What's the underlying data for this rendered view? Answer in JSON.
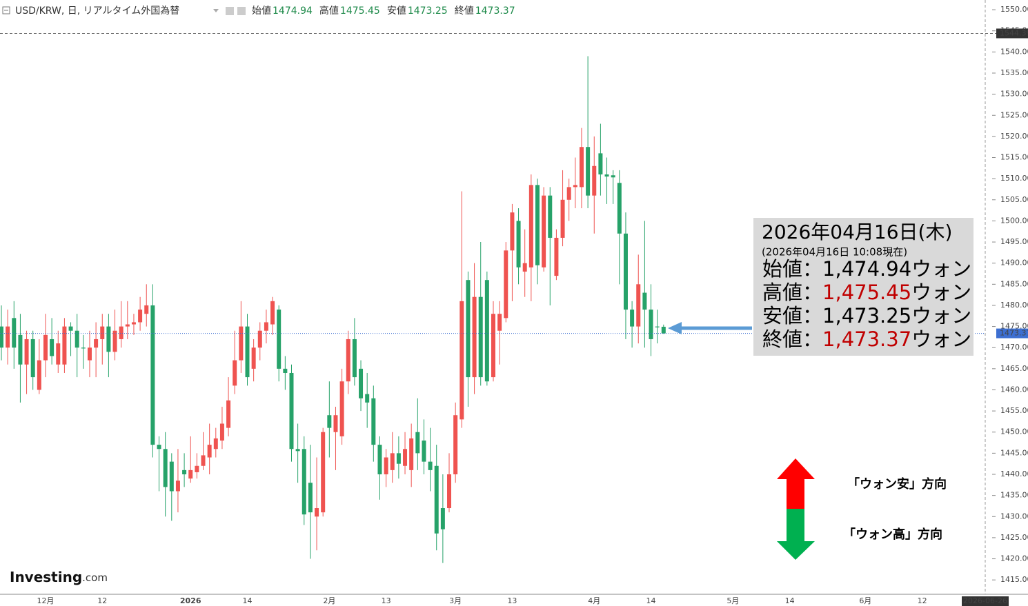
{
  "chart_data": {
    "type": "candlestick",
    "title": "USD/KRW, 日, リアルタイム外国為替",
    "ohlc_labels": {
      "open": "始値",
      "high": "高値",
      "low": "安値",
      "close": "終値"
    },
    "up_color": "#ef5350",
    "down_color": "#26a269",
    "price_line_color": "#3d6fd1",
    "categories": [
      null,
      null,
      null,
      null,
      null,
      null,
      null,
      "12月",
      null,
      null,
      null,
      null,
      null,
      null,
      null,
      null,
      "12",
      null,
      null,
      null,
      null,
      null,
      null,
      null,
      null,
      null,
      null,
      null,
      null,
      null,
      "2026",
      null,
      null,
      null,
      null,
      null,
      null,
      null,
      null,
      "14",
      null,
      null,
      null,
      null,
      null,
      null,
      null,
      null,
      null,
      null,
      null,
      null,
      "2月",
      null,
      null,
      null,
      null,
      null,
      null,
      null,
      null,
      "13",
      null,
      null,
      null,
      null,
      null,
      null,
      null,
      null,
      null,
      null,
      "3月",
      null,
      null,
      null,
      null,
      null,
      null,
      null,
      null,
      "13",
      null,
      null,
      null,
      null,
      null,
      null,
      null,
      null,
      null,
      null,
      null,
      null,
      "4月",
      null,
      null,
      null,
      null,
      null,
      null,
      null,
      null,
      "14",
      null,
      null,
      null,
      null,
      null,
      null,
      null,
      null,
      null,
      null,
      null,
      null,
      "5月",
      null,
      null,
      null,
      null,
      null,
      null,
      null,
      null,
      "14",
      null,
      null,
      null,
      null,
      null,
      null,
      null,
      null,
      null,
      null,
      null,
      "6月",
      null,
      null,
      null,
      null,
      null,
      null,
      null,
      null,
      "12",
      null,
      null,
      null,
      null,
      null,
      null,
      null,
      null,
      null,
      "2026-06-26"
    ],
    "open": [
      1475,
      1470,
      1477,
      1473,
      1466,
      1472,
      1460,
      1467,
      1472,
      1466,
      1466,
      1475,
      1474,
      1470,
      1467,
      1470,
      1472,
      1475,
      1469,
      1472,
      1475,
      1475.5,
      1476,
      1478,
      1480,
      1447,
      1446,
      1443,
      1436,
      1441,
      1439,
      1440.5,
      1442,
      1444,
      1446,
      1448,
      1451,
      1461,
      1467,
      1475,
      1465,
      1470,
      1474,
      1475.5,
      1479,
      1465,
      1464,
      1446,
      1446,
      1438,
      1430,
      1431,
      1454,
      1450,
      1449,
      1462,
      1472,
      1465,
      1459,
      1458,
      1447,
      1440,
      1441,
      1445,
      1442,
      1441,
      1450,
      1448,
      1443,
      1442,
      1432,
      1432,
      1440,
      1453,
      1486,
      1463,
      1482,
      1486,
      1463,
      1474,
      1477,
      1493,
      1500,
      1488,
      1489,
      1508.5,
      1489,
      1506,
      1487,
      1496,
      1505,
      1508,
      1508,
      1517.5,
      1506,
      1516,
      1511,
      1510.8,
      1509,
      1497,
      1479,
      1475,
      1483,
      1479,
      1475,
      1474.94,
      null,
      null,
      null,
      null,
      null,
      null,
      null,
      null,
      null,
      null,
      null,
      null,
      null,
      null,
      null,
      null,
      null,
      null,
      null,
      null,
      null,
      null,
      null,
      null,
      null,
      null,
      null,
      null,
      null,
      null,
      null,
      null,
      null,
      null,
      null,
      null,
      null,
      null,
      null,
      null,
      null,
      null,
      null,
      null,
      null,
      null,
      null,
      null,
      null,
      null,
      null
    ],
    "high": [
      1480,
      1479,
      1481,
      1478,
      1474,
      1474,
      1472,
      1478,
      1477,
      1474,
      1477,
      1476,
      1478,
      1473,
      1474,
      1476,
      1478,
      1478,
      1479,
      1481,
      1481,
      1478,
      1482,
      1485,
      1485,
      1449,
      1450,
      1445,
      1446,
      1445,
      1449,
      1445,
      1450,
      1452,
      1451,
      1456,
      1463,
      1474,
      1481,
      1478,
      1472,
      1476,
      1479,
      1482,
      1480,
      1468,
      1466,
      1452,
      1449,
      1447,
      1444,
      1451,
      1462,
      1456,
      1465,
      1474,
      1477,
      1467,
      1464,
      1461,
      1449,
      1446,
      1450,
      1449,
      1450,
      1452,
      1458,
      1453,
      1451,
      1447,
      1440,
      1445,
      1457,
      1507,
      1488,
      1490,
      1495,
      1488,
      1481,
      1481,
      1495,
      1504,
      1503,
      1498,
      1511,
      1510,
      1508,
      1508,
      1498,
      1512,
      1510,
      1515,
      1522,
      1539,
      1520,
      1523,
      1515,
      1512,
      1512,
      1502,
      1481,
      1492,
      1500,
      1485,
      1479,
      1475.45,
      null,
      null,
      null,
      null,
      null,
      null,
      null,
      null,
      null,
      null,
      null,
      null,
      null,
      null,
      null,
      null,
      null,
      null,
      null,
      null,
      null,
      null,
      null,
      null,
      null,
      null,
      null,
      null,
      null,
      null,
      null,
      null,
      null,
      null,
      null,
      null,
      null,
      null,
      null,
      null,
      null,
      null,
      null,
      null,
      null,
      null,
      null,
      null,
      null,
      null,
      null
    ],
    "low": [
      1467,
      1466,
      1465,
      1457,
      1459,
      1460,
      1459,
      1463,
      1466,
      1464,
      1464,
      1468,
      1463,
      1465,
      1463,
      1463,
      1466,
      1463,
      1467,
      1470,
      1472,
      1473,
      1474,
      1475,
      1444,
      1436,
      1430,
      1429,
      1431,
      1437,
      1438,
      1439,
      1441,
      1440,
      1444,
      1446,
      1449,
      1459,
      1464,
      1461,
      1462,
      1467,
      1471,
      1473,
      1462,
      1460,
      1443,
      1438,
      1428,
      1420,
      1422,
      1430,
      1444,
      1441,
      1447,
      1459,
      1461,
      1455,
      1451,
      1443,
      1434,
      1437,
      1438,
      1439,
      1440,
      1437,
      1441,
      1440,
      1436,
      1422,
      1419,
      1431,
      1438,
      1451,
      1456,
      1459,
      1461,
      1461,
      1462,
      1466,
      1476,
      1481,
      1485,
      1482,
      1481,
      1485,
      1488,
      1480,
      1486,
      1494,
      1500,
      1503,
      1503,
      1503,
      1497,
      1506,
      1504,
      1504,
      1485,
      1472,
      1470,
      1471,
      1470,
      1468,
      1471,
      1473.25,
      null,
      null,
      null,
      null,
      null,
      null,
      null,
      null,
      null,
      null,
      null,
      null,
      null,
      null,
      null,
      null,
      null,
      null,
      null,
      null,
      null,
      null,
      null,
      null,
      null,
      null,
      null,
      null,
      null,
      null,
      null,
      null,
      null,
      null,
      null,
      null,
      null,
      null,
      null,
      null,
      null,
      null,
      null,
      null,
      null,
      null,
      null,
      null,
      null,
      null,
      null
    ],
    "close": [
      1470,
      1475,
      1470,
      1466,
      1472,
      1463,
      1467,
      1473,
      1468,
      1471,
      1475,
      1474,
      1470,
      1469.8,
      1470,
      1472,
      1475,
      1469,
      1474,
      1475,
      1475.5,
      1476,
      1479,
      1480,
      1447,
      1446,
      1437,
      1436,
      1438.5,
      1440,
      1441,
      1442,
      1444.5,
      1447,
      1448.5,
      1452,
      1457.5,
      1467,
      1475,
      1463,
      1470,
      1474,
      1476,
      1481,
      1465,
      1464,
      1446,
      1445.5,
      1430.5,
      1431,
      1432,
      1450,
      1451,
      1454,
      1462,
      1472,
      1463,
      1458,
      1457,
      1447,
      1440,
      1444,
      1445,
      1442.5,
      1446,
      1448.5,
      1445,
      1443,
      1441,
      1426,
      1427,
      1440,
      1454,
      1481,
      1463,
      1482,
      1463,
      1462,
      1478,
      1478,
      1493,
      1502,
      1489,
      1490,
      1508.5,
      1489.5,
      1506,
      1496,
      1496,
      1505,
      1508,
      1508.5,
      1517.5,
      1506,
      1513,
      1511,
      1510.5,
      1510.3,
      1497,
      1479,
      1475,
      1485,
      1479,
      1472,
      1474.8,
      1473.37,
      null,
      null,
      null,
      null,
      null,
      null,
      null,
      null,
      null,
      null,
      null,
      null,
      null,
      null,
      null,
      null,
      null,
      null,
      null,
      null,
      null,
      null,
      null,
      null,
      null,
      null,
      null,
      null,
      null,
      null,
      null,
      null,
      null,
      null,
      null,
      null,
      null,
      null,
      null,
      null,
      null,
      null,
      null,
      null,
      null,
      null,
      null,
      null,
      null,
      null,
      null
    ],
    "ylim": [
      1411.6,
      1552.3
    ],
    "yticks": [
      {
        "value": 1415,
        "label": "1415.00"
      },
      {
        "value": 1420,
        "label": "1420.00"
      },
      {
        "value": 1425,
        "label": "1425.00"
      },
      {
        "value": 1430,
        "label": "1430.00"
      },
      {
        "value": 1435,
        "label": "1435.00"
      },
      {
        "value": 1440,
        "label": "1440.00"
      },
      {
        "value": 1445,
        "label": "1445.00"
      },
      {
        "value": 1450,
        "label": "1450.00"
      },
      {
        "value": 1455,
        "label": "1455.00"
      },
      {
        "value": 1460,
        "label": "1460.00"
      },
      {
        "value": 1465,
        "label": "1465.00"
      },
      {
        "value": 1470,
        "label": "1470.00"
      },
      {
        "value": 1475,
        "label": "1475.00"
      },
      {
        "value": 1480,
        "label": "1480.00"
      },
      {
        "value": 1485,
        "label": "1485.00"
      },
      {
        "value": 1490,
        "label": "1490.00"
      },
      {
        "value": 1495,
        "label": "1495.00"
      },
      {
        "value": 1500,
        "label": "1500.00"
      },
      {
        "value": 1505,
        "label": "1505.00"
      },
      {
        "value": 1510,
        "label": "1510.00"
      },
      {
        "value": 1515,
        "label": "1515.00"
      },
      {
        "value": 1520,
        "label": "1520.00"
      },
      {
        "value": 1525,
        "label": "1525.00"
      },
      {
        "value": 1530,
        "label": "1530.00"
      },
      {
        "value": 1535,
        "label": "1535.00"
      },
      {
        "value": 1540,
        "label": "1540.00"
      },
      {
        "value": 1545,
        "label": "1545.00"
      },
      {
        "value": 1550,
        "label": "1550.00"
      }
    ],
    "crosshair_price": 1544.39
  },
  "annotation": {
    "date": "2026年04月16日(木)",
    "asof": "(2026年04月16日 10:08現在)",
    "separator": "：",
    "unit": "ウォン",
    "highlight_color": "#c00000",
    "rows": [
      {
        "label": "始値",
        "value": "1,474.94",
        "highlight": false
      },
      {
        "label": "高値",
        "value": "1,475.45",
        "highlight": true
      },
      {
        "label": "安値",
        "value": "1,473.25",
        "highlight": false
      },
      {
        "label": "終値",
        "value": "1,473.37",
        "highlight": true
      }
    ]
  },
  "direction": {
    "up": "「ウォン安」方向",
    "down": "「ウォン高」方向"
  },
  "logo": {
    "name": "Investing",
    "suffix": ".com"
  }
}
